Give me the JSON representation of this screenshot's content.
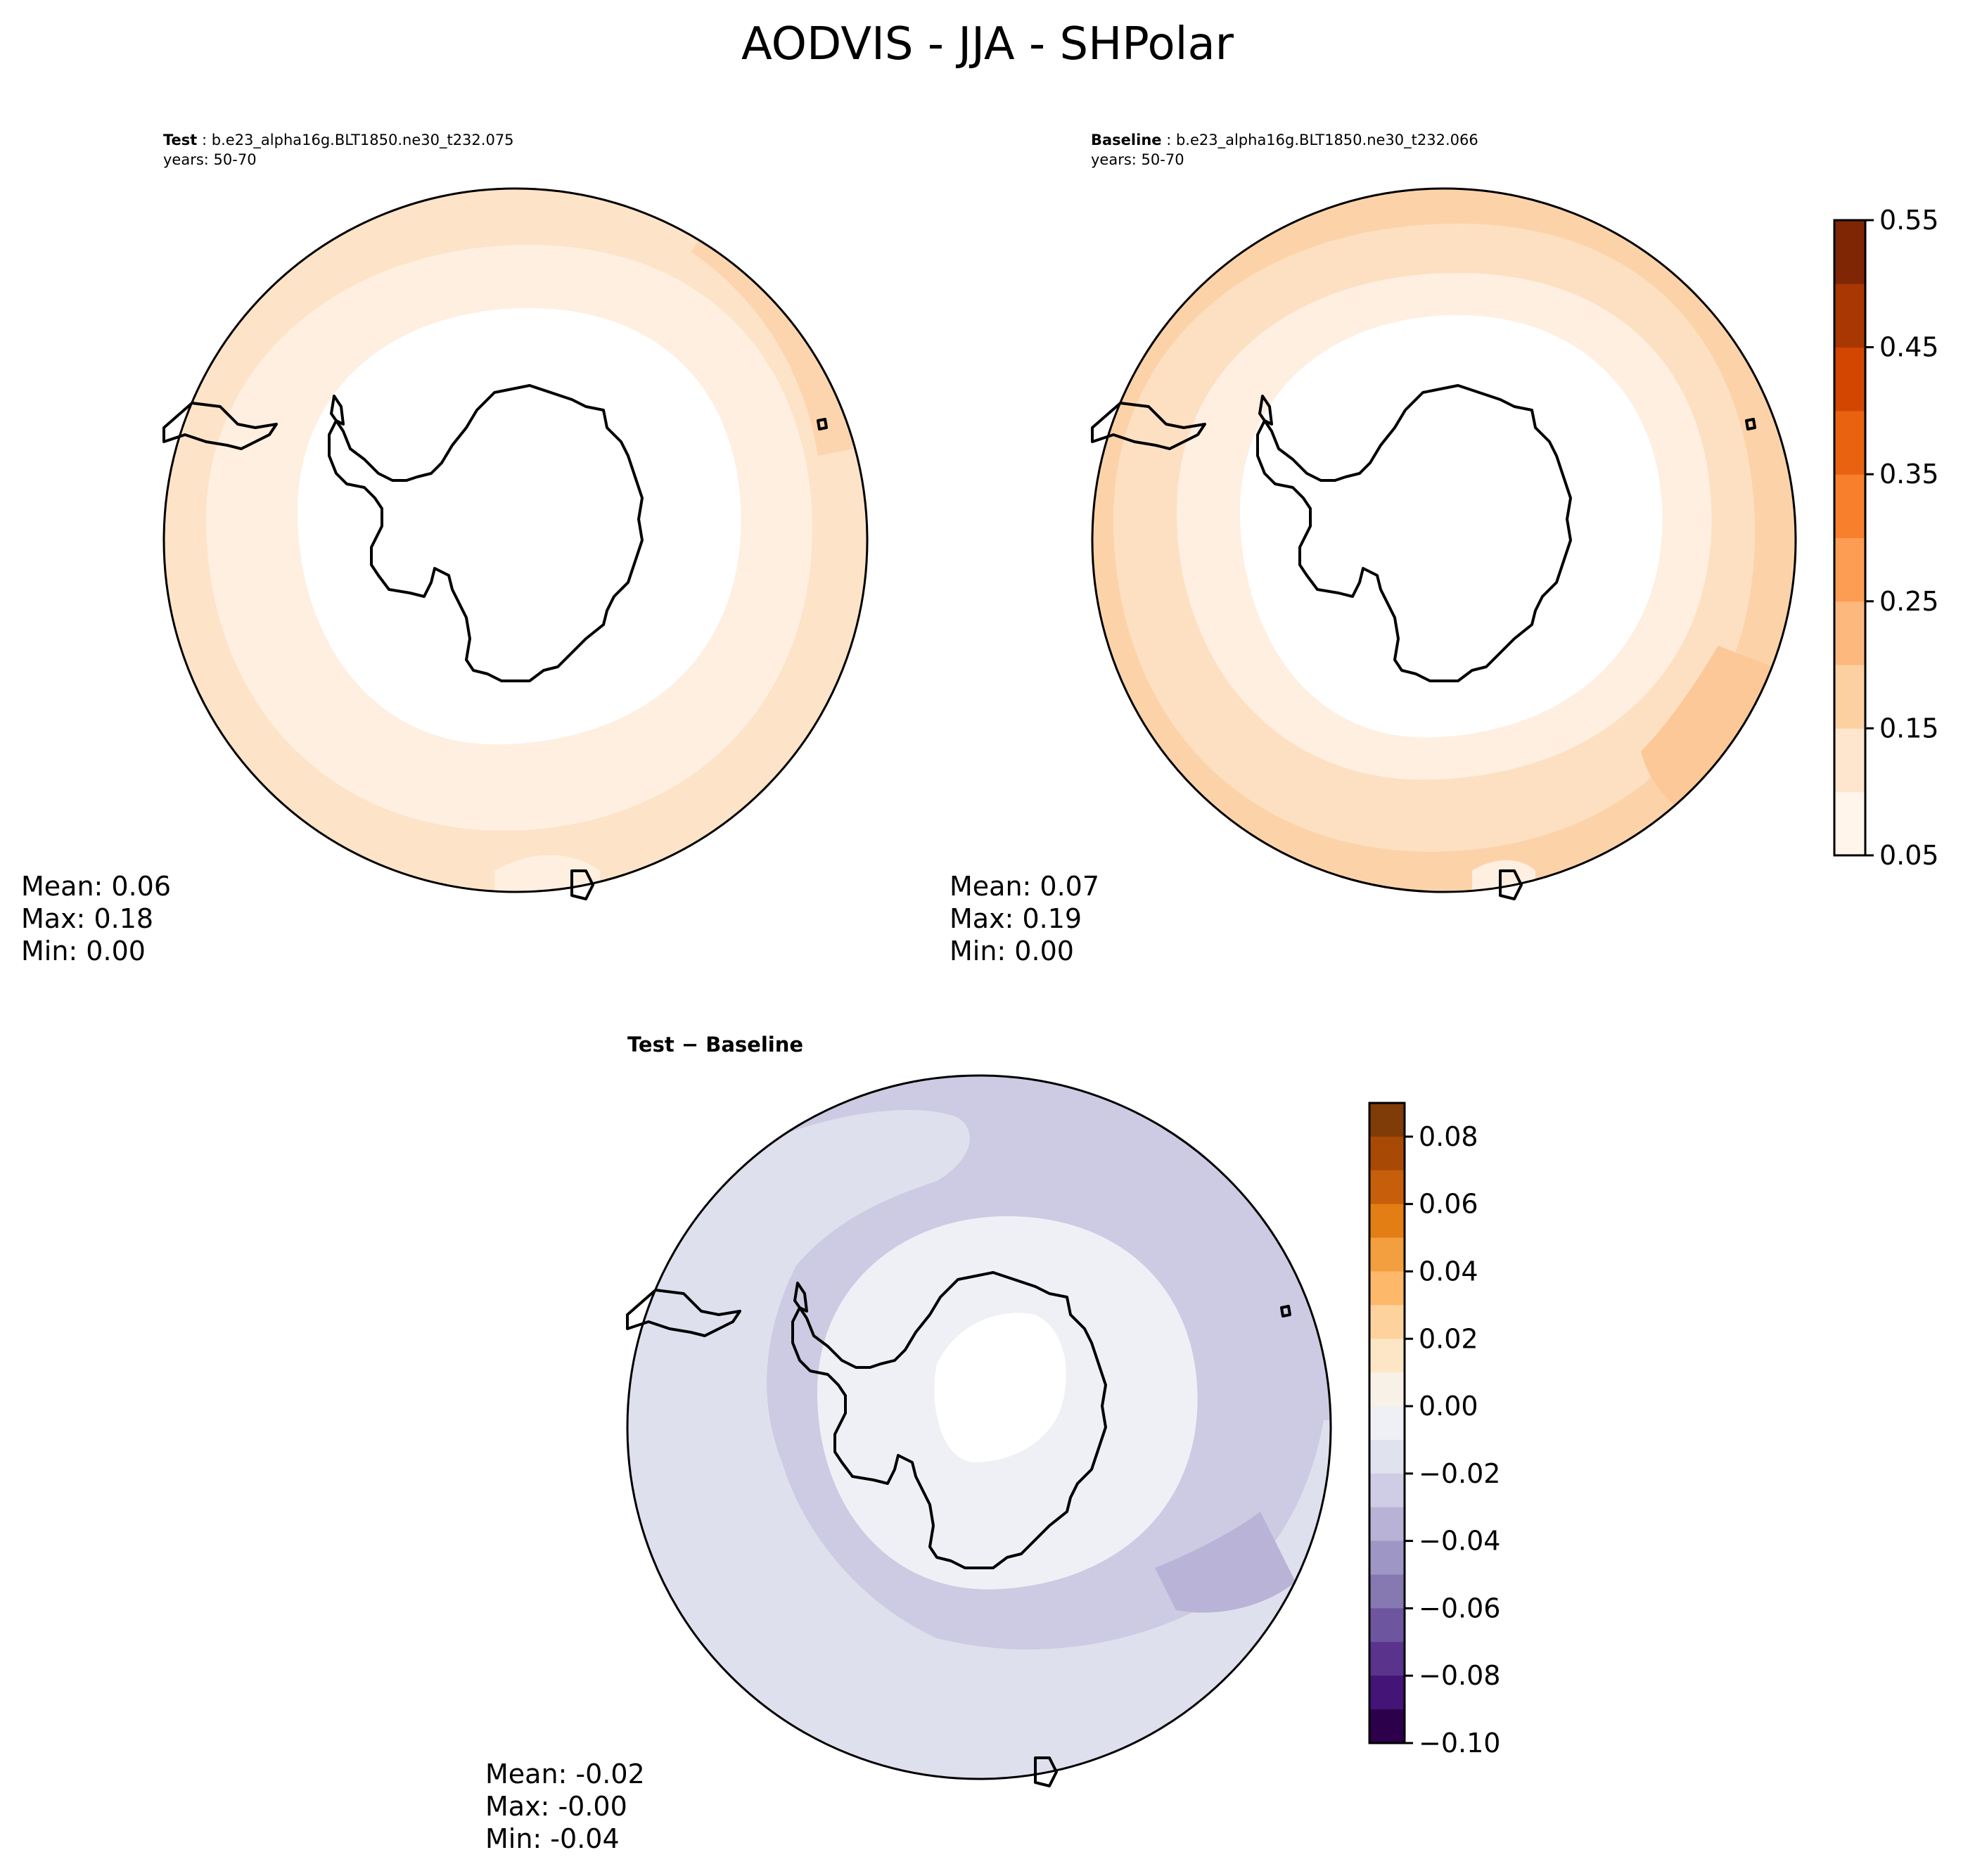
{
  "figure": {
    "title": "AODVIS - JJA - SHPolar"
  },
  "panels": [
    {
      "id": "test",
      "label": "Test",
      "case": "b.e23_alpha16g.BLT1850.ne30_t232.075",
      "years": "years: 50-70",
      "stats": {
        "mean": "Mean:  0.06",
        "max": "Max:  0.18",
        "min": "Min:  0.00"
      }
    },
    {
      "id": "baseline",
      "label": "Baseline",
      "case": "b.e23_alpha16g.BLT1850.ne30_t232.066",
      "years": "years: 50-70",
      "stats": {
        "mean": "Mean:  0.07",
        "max": "Max:  0.19",
        "min": "Min:  0.00"
      }
    },
    {
      "id": "diff",
      "label": "Test − Baseline",
      "stats": {
        "mean": "Mean: -0.02",
        "max": "Max: -0.00",
        "min": "Min: -0.04"
      }
    }
  ],
  "colorbars": {
    "main": {
      "ticks": [
        "0.05",
        "0.15",
        "0.25",
        "0.35",
        "0.45",
        "0.55"
      ],
      "range": [
        0.05,
        0.55
      ],
      "levels": 10,
      "colors": [
        "#fff5eb",
        "#fee6ce",
        "#fdd0a2",
        "#fdb97d",
        "#fd9d53",
        "#f87f2c",
        "#e9620f",
        "#d34601",
        "#a83703",
        "#7f2704"
      ]
    },
    "diff": {
      "ticks": [
        "0.08",
        "0.06",
        "0.04",
        "0.02",
        "0.00",
        "−0.02",
        "−0.04",
        "−0.06",
        "−0.08",
        "−0.10"
      ],
      "range": [
        -0.1,
        0.09
      ],
      "levels": 19,
      "colors_top_to_bottom": [
        "#7f3b08",
        "#a84a05",
        "#c75e0b",
        "#e27e13",
        "#f39f3f",
        "#fdb969",
        "#fed29c",
        "#fde6c5",
        "#f8f1e7",
        "#eff0f5",
        "#e0e2ee",
        "#cecde5",
        "#b7b2d6",
        "#9e97c5",
        "#8679b1",
        "#6e559f",
        "#5a338c",
        "#441476",
        "#2d004b"
      ]
    }
  },
  "map_fill_colors": {
    "test": [
      "#fde3c7",
      "#feefe0",
      "#ffffff"
    ],
    "baseline": [
      "#fccea1",
      "#fddbb8",
      "#feefe1",
      "#ffffff"
    ],
    "diff": [
      "#cdcbe3",
      "#dfe0ee",
      "#eff0f5",
      "#ffffff"
    ]
  }
}
